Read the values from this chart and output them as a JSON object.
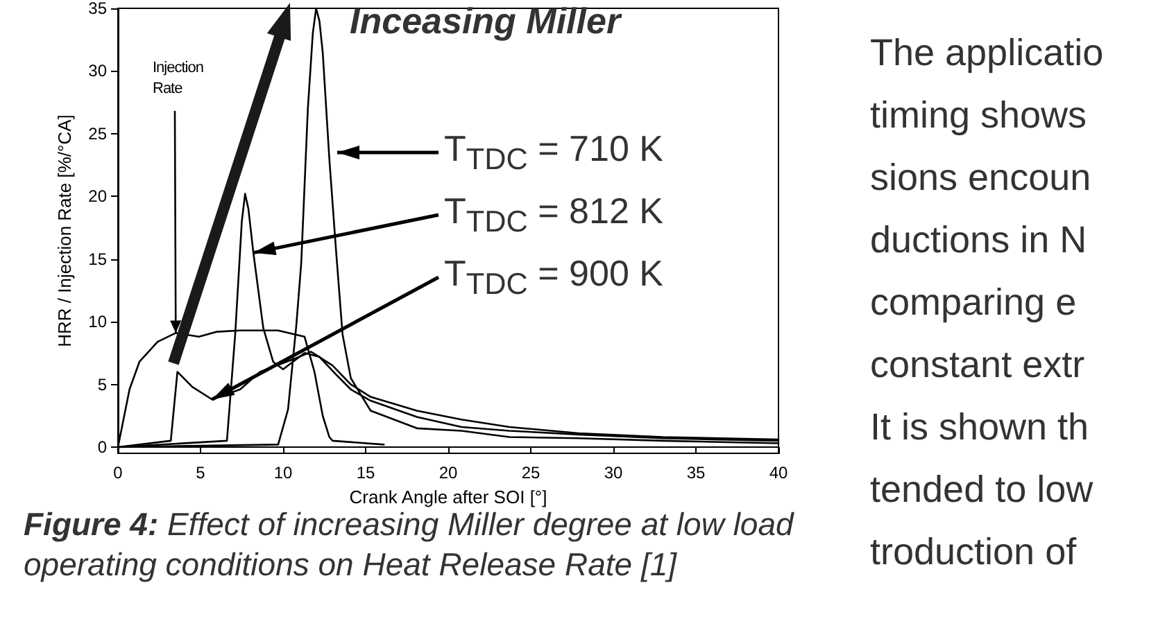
{
  "chart_data": {
    "type": "line",
    "xlabel": "Crank Angle after SOI [°]",
    "ylabel": "HRR / Injection Rate [%/°CA]",
    "xlim": [
      0,
      40
    ],
    "xticks": [
      0,
      5,
      10,
      15,
      20,
      25,
      30,
      35,
      40
    ],
    "ylim": [
      -0.5,
      35
    ],
    "yticks": [
      0,
      5,
      10,
      15,
      20,
      25,
      30,
      35
    ],
    "marker": "none",
    "line_style": "solid",
    "series": [
      {
        "color": "#000000",
        "x": [
          0,
          0.7,
          1.3,
          2.4,
          3.5,
          4.9,
          6,
          7.4,
          9.7,
          11.3,
          11.9,
          12.4,
          12.8,
          13,
          16.1
        ],
        "values": [
          0,
          4.6,
          6.8,
          8.4,
          9.1,
          8.8,
          9.2,
          9.3,
          9.3,
          8.8,
          6,
          2.5,
          0.8,
          0.5,
          0.2
        ]
      },
      {
        "color": "#000000",
        "x": [
          0,
          9.7,
          10.3,
          10.8,
          11.1,
          11.5,
          11.8,
          12,
          12.2,
          12.4,
          12.8,
          13.2,
          13.6,
          14.1,
          15.3,
          18.1,
          20.8,
          23.7,
          27.9,
          33,
          40
        ],
        "values": [
          0,
          0.2,
          3,
          9.7,
          14.7,
          27,
          33,
          35,
          34,
          31.5,
          23,
          15.8,
          9,
          5.5,
          2.9,
          1.5,
          1.3,
          0.8,
          0.7,
          0.5,
          0.3
        ]
      },
      {
        "color": "#000000",
        "x": [
          0,
          6.6,
          7.1,
          7.5,
          7.7,
          7.9,
          8.2,
          8.8,
          9.4,
          10,
          11.3,
          12.2,
          13.2,
          14.1,
          15.3,
          18.1,
          20.8,
          23.7,
          27.9,
          33,
          40
        ],
        "values": [
          0,
          0.5,
          9,
          18,
          20.2,
          19,
          15.5,
          9.5,
          6.8,
          6.2,
          7.5,
          7.2,
          5.8,
          4.6,
          3.7,
          2.4,
          1.6,
          1.3,
          1,
          0.7,
          0.5
        ]
      },
      {
        "color": "#000000",
        "x": [
          0,
          3.2,
          3.6,
          4.5,
          5.7,
          7.4,
          8.6,
          10.8,
          11.7,
          13,
          14.1,
          15.3,
          18.1,
          20.8,
          23.7,
          27.9,
          33,
          40
        ],
        "values": [
          0,
          0.5,
          6,
          4.8,
          3.8,
          4.6,
          6,
          7.1,
          7.6,
          6.5,
          5,
          4,
          2.9,
          2.2,
          1.6,
          1.1,
          0.8,
          0.6
        ]
      }
    ],
    "annotations": [
      {
        "text": "Injection Rate",
        "x": 3.5,
        "y": 9.1
      },
      "T$_{TDC}$ = 710 K",
      {
        "text": "T$_{TDC}$ = 812 K",
        "x": 8.2,
        "y": 15.5
      },
      {
        "text": "T$_{TDC}$ = 900 K",
        "x": 5.7,
        "y": 3.8
      },
      "Inceasing Miller",
      "Figure 4: Effect of increasing Miller degree at low load operating conditions on Heat Release Rate [1]",
      "The applicatio",
      "timing shows",
      "sions encoun",
      "ductions in N",
      "comparing e",
      "constant extr",
      "It is shown th",
      "tended to low",
      "troduction of"
    ]
  }
}
